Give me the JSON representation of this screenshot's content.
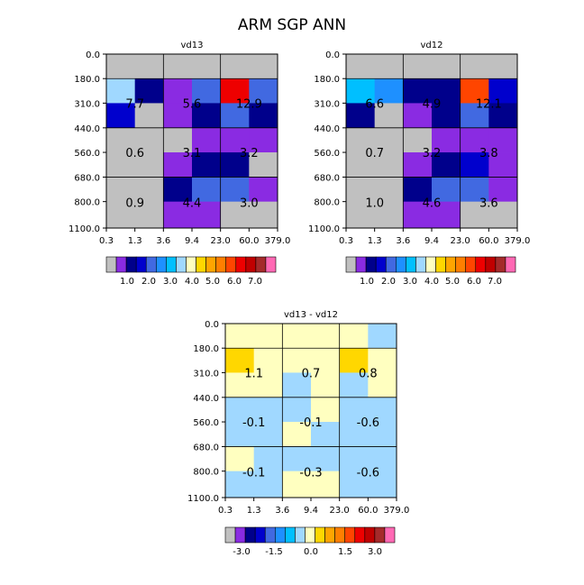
{
  "title": "ARM SGP ANN",
  "x_tick_labels": [
    "0.3",
    "1.3",
    "3.6",
    "9.4",
    "23.0",
    "60.0",
    "379.0"
  ],
  "y_tick_labels": [
    "0.0",
    "180.0",
    "310.0",
    "440.0",
    "560.0",
    "680.0",
    "800.0",
    "1100.0"
  ],
  "abs_palette": [
    "#c0c0c0",
    "#8a2be2",
    "#00008b",
    "#0000cd",
    "#4169e1",
    "#1e90ff",
    "#00bfff",
    "#a0d8ff",
    "#ffffc0",
    "#ffd700",
    "#ffa500",
    "#ff7f00",
    "#ff4500",
    "#ee0000",
    "#c00000",
    "#a52a2a",
    "#ff69b4"
  ],
  "diff_palette": [
    "#c0c0c0",
    "#8a2be2",
    "#00008b",
    "#0000cd",
    "#4169e1",
    "#1e90ff",
    "#00bfff",
    "#a0d8ff",
    "#ffffc0",
    "#ffd700",
    "#ffa500",
    "#ff7f00",
    "#ff4500",
    "#ee0000",
    "#c00000",
    "#a52a2a",
    "#ff69b4"
  ],
  "abs_colorbar_labels": [
    "1.0",
    "2.0",
    "3.0",
    "4.0",
    "5.0",
    "6.0",
    "7.0"
  ],
  "diff_colorbar_labels": [
    "-3.0",
    "-1.5",
    "0.0",
    "1.5",
    "3.0"
  ],
  "chart_data": [
    {
      "type": "heatmap",
      "title": "vd13",
      "cells": [
        [
          0,
          0,
          0,
          0,
          0,
          0
        ],
        [
          7,
          2,
          1,
          4,
          13,
          4
        ],
        [
          3,
          0,
          1,
          2,
          4,
          2
        ],
        [
          0,
          0,
          0,
          1,
          1,
          1
        ],
        [
          0,
          0,
          1,
          2,
          2,
          0
        ],
        [
          0,
          0,
          2,
          4,
          4,
          1
        ],
        [
          0,
          0,
          1,
          1,
          0,
          0
        ]
      ],
      "block_values": [
        [
          "7.7",
          "5.6",
          "12.9"
        ],
        [
          "0.6",
          "3.1",
          "3.2"
        ],
        [
          "0.9",
          "4.4",
          "3.0"
        ]
      ]
    },
    {
      "type": "heatmap",
      "title": "vd12",
      "cells": [
        [
          0,
          0,
          0,
          0,
          0,
          0
        ],
        [
          6,
          5,
          2,
          2,
          12,
          3
        ],
        [
          2,
          0,
          1,
          2,
          4,
          2
        ],
        [
          0,
          0,
          0,
          1,
          1,
          1
        ],
        [
          0,
          0,
          1,
          2,
          3,
          1
        ],
        [
          0,
          0,
          2,
          4,
          4,
          1
        ],
        [
          0,
          0,
          1,
          1,
          0,
          0
        ]
      ],
      "block_values": [
        [
          "6.6",
          "4.9",
          "12.1"
        ],
        [
          "0.7",
          "3.2",
          "3.8"
        ],
        [
          "1.0",
          "4.6",
          "3.6"
        ]
      ]
    },
    {
      "type": "heatmap",
      "title": "vd13 - vd12",
      "cells": [
        [
          8,
          8,
          8,
          8,
          8,
          7
        ],
        [
          9,
          8,
          8,
          8,
          9,
          8
        ],
        [
          8,
          8,
          7,
          8,
          7,
          8
        ],
        [
          7,
          7,
          7,
          8,
          7,
          7
        ],
        [
          7,
          7,
          8,
          7,
          7,
          7
        ],
        [
          8,
          7,
          7,
          7,
          7,
          7
        ],
        [
          7,
          7,
          8,
          8,
          7,
          7
        ]
      ],
      "block_values": [
        [
          "1.1",
          "0.7",
          "0.8"
        ],
        [
          "-0.1",
          "-0.1",
          "-0.6"
        ],
        [
          "-0.1",
          "-0.3",
          "-0.6"
        ]
      ]
    }
  ]
}
